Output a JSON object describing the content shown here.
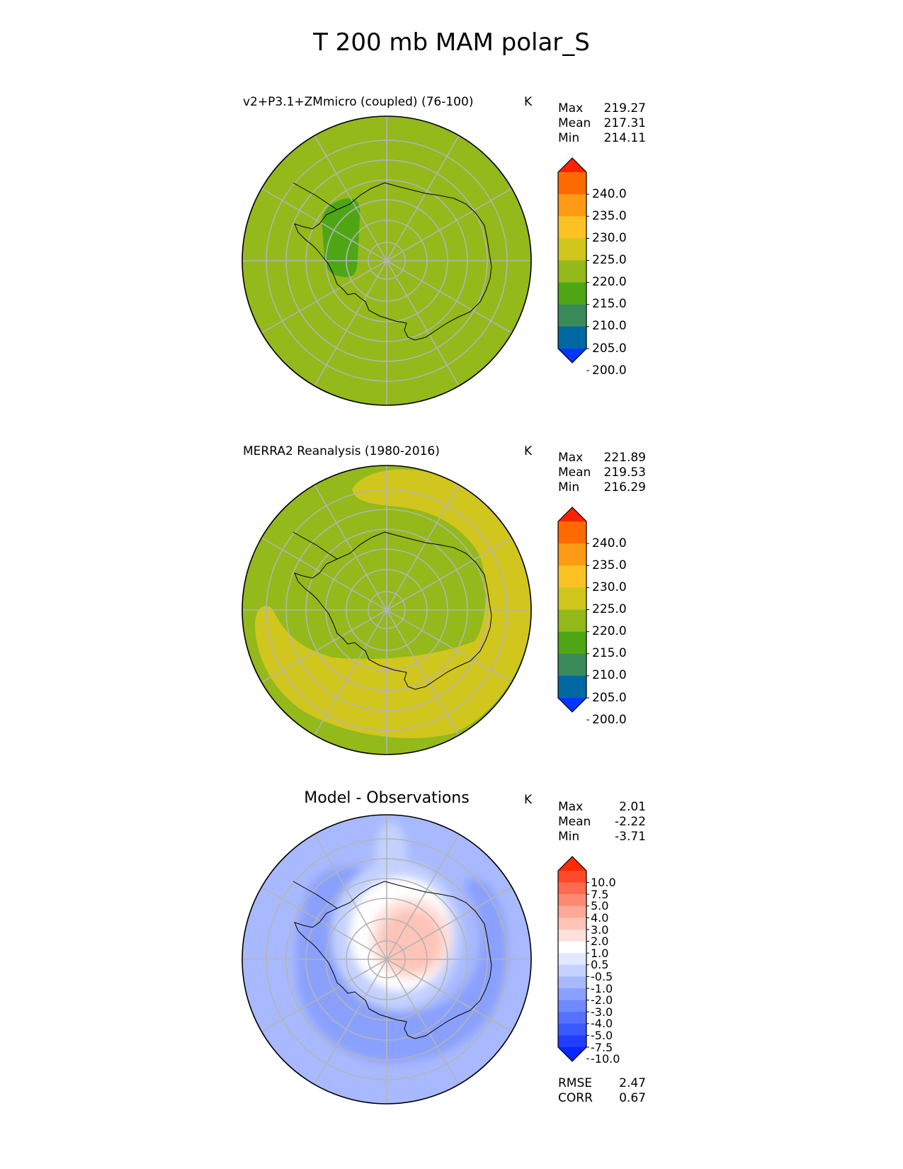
{
  "chart_data": {
    "title": "T 200 mb MAM polar_S",
    "panels": [
      {
        "type": "heatmap",
        "title": "v2+P3.1+ZMmicro (coupled) (76-100)",
        "units": "K",
        "stats": [
          {
            "label": "Max",
            "value": "219.27"
          },
          {
            "label": "Mean",
            "value": "217.31"
          },
          {
            "label": "Min",
            "value": "214.11"
          }
        ],
        "colorbar": {
          "levels": [
            "240.0",
            "235.0",
            "230.0",
            "225.0",
            "220.0",
            "215.0",
            "210.0",
            "205.0",
            "200.0"
          ],
          "colors": [
            "#ff2200",
            "#ff6a00",
            "#ff9a14",
            "#fbc223",
            "#d1c61e",
            "#93b91a",
            "#4ea614",
            "#3b8a5c",
            "#0068a0",
            "#0037ff"
          ]
        },
        "field": "Uniform ~217 K (215-220 band) with a cooler 210-215 K patch over the Antarctic Peninsula / Weddell sector"
      },
      {
        "type": "heatmap",
        "title": "MERRA2 Reanalysis (1980-2016)",
        "units": "K",
        "stats": [
          {
            "label": "Max",
            "value": "221.89"
          },
          {
            "label": "Mean",
            "value": "219.53"
          },
          {
            "label": "Min",
            "value": "216.29"
          }
        ],
        "colorbar": {
          "levels": [
            "240.0",
            "235.0",
            "230.0",
            "225.0",
            "220.0",
            "215.0",
            "210.0",
            "205.0",
            "200.0"
          ],
          "colors": [
            "#ff2200",
            "#ff6a00",
            "#ff9a14",
            "#fbc223",
            "#d1c61e",
            "#93b91a",
            "#4ea614",
            "#3b8a5c",
            "#0068a0",
            "#0037ff"
          ]
        },
        "field": "215-220 K over the pole with a 220-225 K crescent band wrapping the eastern and northern sectors"
      },
      {
        "type": "heatmap",
        "title": "Model - Observations",
        "units": "K",
        "stats": [
          {
            "label": "Max",
            "value": "2.01"
          },
          {
            "label": "Mean",
            "value": "-2.22"
          },
          {
            "label": "Min",
            "value": "-3.71"
          }
        ],
        "colorbar": {
          "levels": [
            "10.0",
            "7.5",
            "5.0",
            "4.0",
            "3.0",
            "2.0",
            "1.0",
            "0.5",
            "-0.5",
            "-1.0",
            "-2.0",
            "-3.0",
            "-4.0",
            "-5.0",
            "-7.5",
            "-10.0"
          ],
          "colors": [
            "#ff2a00",
            "#ff4a2a",
            "#ff6a50",
            "#ff8a74",
            "#ffa898",
            "#ffc4b8",
            "#ffe0da",
            "#ffffff",
            "#e2e8ff",
            "#c4d1ff",
            "#a8b9ff",
            "#8aa0ff",
            "#6f88ff",
            "#5670ff",
            "#3c58ff",
            "#1f3eff",
            "#0528ff"
          ]
        },
        "field": "Mostly -2 to -3 K cold bias; near-zero to +2 K warm anomaly centered near the pole",
        "metrics": [
          {
            "label": "RMSE",
            "value": "2.47"
          },
          {
            "label": "CORR",
            "value": "0.67"
          }
        ]
      }
    ]
  }
}
